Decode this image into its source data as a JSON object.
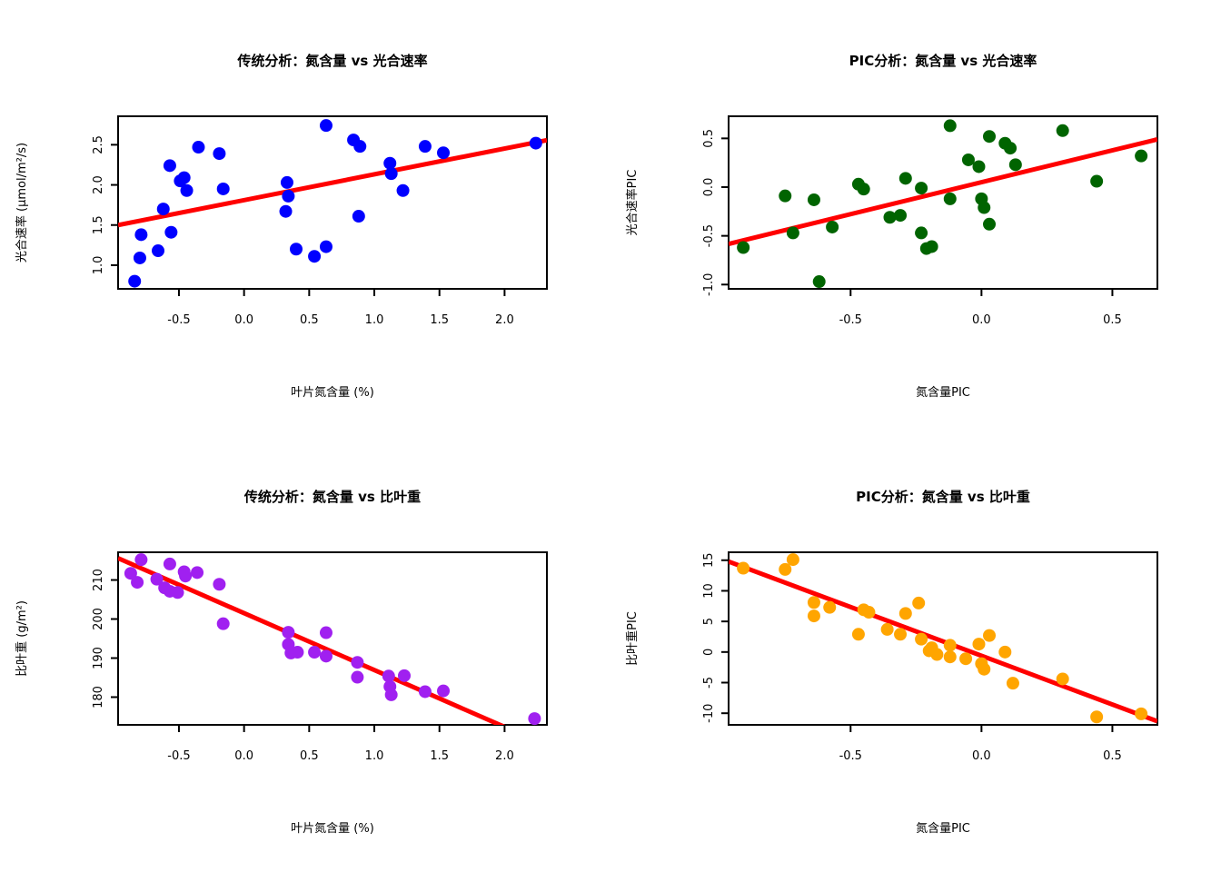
{
  "figure": {
    "background": "#ffffff",
    "text_color": "#000000",
    "regression_line_color": "#ff0000"
  },
  "chart_data": [
    {
      "id": "traditional-photosynthesis",
      "type": "scatter",
      "title": "传统分析：氮含量 vs 光合速率",
      "xlabel": "叶片氮含量 (%)",
      "ylabel": "光合速率 (μmol/m²/s)",
      "point_color": "#0000ff",
      "xlim": [
        -0.967,
        2.325
      ],
      "ylim": [
        0.705,
        2.855
      ],
      "xticks": [
        {
          "v": -0.5,
          "label": "-0.5"
        },
        {
          "v": 0.0,
          "label": "0.0"
        },
        {
          "v": 0.5,
          "label": "0.5"
        },
        {
          "v": 1.0,
          "label": "1.0"
        },
        {
          "v": 1.5,
          "label": "1.5"
        },
        {
          "v": 2.0,
          "label": "2.0"
        }
      ],
      "yticks": [
        {
          "v": 1.0,
          "label": "1.0"
        },
        {
          "v": 1.5,
          "label": "1.5"
        },
        {
          "v": 2.0,
          "label": "2.0"
        },
        {
          "v": 2.5,
          "label": "2.5"
        }
      ],
      "regression": {
        "intercept": 1.81,
        "slope": 0.3214,
        "color": "#ff0000"
      },
      "points": [
        [
          -0.84,
          0.8
        ],
        [
          -0.8,
          1.09
        ],
        [
          -0.79,
          1.38
        ],
        [
          -0.66,
          1.18
        ],
        [
          -0.62,
          1.7
        ],
        [
          -0.57,
          2.24
        ],
        [
          -0.56,
          1.41
        ],
        [
          -0.49,
          2.05
        ],
        [
          -0.46,
          2.09
        ],
        [
          -0.44,
          1.93
        ],
        [
          -0.35,
          2.47
        ],
        [
          -0.19,
          2.39
        ],
        [
          -0.16,
          1.95
        ],
        [
          0.32,
          1.67
        ],
        [
          0.33,
          2.03
        ],
        [
          0.34,
          1.86
        ],
        [
          0.4,
          1.2
        ],
        [
          0.54,
          1.11
        ],
        [
          0.63,
          1.23
        ],
        [
          0.63,
          2.74
        ],
        [
          0.84,
          2.56
        ],
        [
          0.89,
          2.48
        ],
        [
          0.88,
          1.61
        ],
        [
          1.12,
          2.27
        ],
        [
          1.13,
          2.14
        ],
        [
          1.22,
          1.93
        ],
        [
          1.39,
          2.48
        ],
        [
          1.53,
          2.4
        ],
        [
          2.24,
          2.52
        ]
      ]
    },
    {
      "id": "pic-photosynthesis",
      "type": "scatter",
      "title": "PIC分析：氮含量 vs 光合速率",
      "xlabel": "氮含量PIC",
      "ylabel": "光合速率PIC",
      "point_color": "#006400",
      "xlim": [
        -0.966,
        0.672
      ],
      "ylim": [
        -1.044,
        0.727
      ],
      "xticks": [
        {
          "v": -0.5,
          "label": "-0.5"
        },
        {
          "v": 0.0,
          "label": "0.0"
        },
        {
          "v": 0.5,
          "label": "0.5"
        }
      ],
      "yticks": [
        {
          "v": -1.0,
          "label": "-1.0"
        },
        {
          "v": -0.5,
          "label": "-0.5"
        },
        {
          "v": 0.0,
          "label": "0.0"
        },
        {
          "v": 0.5,
          "label": "0.5"
        }
      ],
      "regression": {
        "intercept": 0.05,
        "slope": 0.655,
        "color": "#ff0000"
      },
      "points": [
        [
          -0.91,
          -0.62
        ],
        [
          -0.75,
          -0.09
        ],
        [
          -0.72,
          -0.47
        ],
        [
          -0.64,
          -0.13
        ],
        [
          -0.62,
          -0.97
        ],
        [
          -0.57,
          -0.41
        ],
        [
          -0.47,
          0.03
        ],
        [
          -0.45,
          -0.02
        ],
        [
          -0.35,
          -0.31
        ],
        [
          -0.31,
          -0.29
        ],
        [
          -0.29,
          0.09
        ],
        [
          -0.23,
          -0.01
        ],
        [
          -0.23,
          -0.47
        ],
        [
          -0.21,
          -0.63
        ],
        [
          -0.19,
          -0.61
        ],
        [
          -0.12,
          0.63
        ],
        [
          -0.12,
          -0.12
        ],
        [
          -0.05,
          0.28
        ],
        [
          -0.01,
          0.21
        ],
        [
          0.03,
          0.52
        ],
        [
          0.09,
          0.45
        ],
        [
          0.11,
          0.4
        ],
        [
          0.13,
          0.23
        ],
        [
          0.0,
          -0.12
        ],
        [
          0.01,
          -0.21
        ],
        [
          0.03,
          -0.38
        ],
        [
          0.31,
          0.58
        ],
        [
          0.44,
          0.06
        ],
        [
          0.61,
          0.32
        ]
      ]
    },
    {
      "id": "traditional-sla",
      "type": "scatter",
      "title": "传统分析：氮含量 vs 比叶重",
      "xlabel": "叶片氮含量 (%)",
      "ylabel": "比叶重 (g/m²)",
      "point_color": "#a020f0",
      "xlim": [
        -0.967,
        2.325
      ],
      "ylim": [
        172.9,
        217.1
      ],
      "xticks": [
        {
          "v": -0.5,
          "label": "-0.5"
        },
        {
          "v": 0.0,
          "label": "0.0"
        },
        {
          "v": 0.5,
          "label": "0.5"
        },
        {
          "v": 1.0,
          "label": "1.0"
        },
        {
          "v": 1.5,
          "label": "1.5"
        },
        {
          "v": 2.0,
          "label": "2.0"
        }
      ],
      "yticks": [
        {
          "v": 180,
          "label": "180"
        },
        {
          "v": 190,
          "label": "190"
        },
        {
          "v": 200,
          "label": "200"
        },
        {
          "v": 210,
          "label": "210"
        }
      ],
      "regression": {
        "intercept": 201.5,
        "slope": -14.56,
        "color": "#ff0000"
      },
      "points": [
        [
          -0.87,
          211.7
        ],
        [
          -0.82,
          209.4
        ],
        [
          -0.79,
          215.2
        ],
        [
          -0.67,
          210.2
        ],
        [
          -0.61,
          208.0
        ],
        [
          -0.57,
          214.1
        ],
        [
          -0.57,
          207.1
        ],
        [
          -0.51,
          206.8
        ],
        [
          -0.46,
          212.1
        ],
        [
          -0.45,
          211.0
        ],
        [
          -0.36,
          211.9
        ],
        [
          -0.19,
          208.9
        ],
        [
          -0.16,
          198.8
        ],
        [
          0.34,
          196.6
        ],
        [
          0.34,
          193.5
        ],
        [
          0.36,
          191.3
        ],
        [
          0.41,
          191.5
        ],
        [
          0.54,
          191.5
        ],
        [
          0.63,
          196.5
        ],
        [
          0.63,
          190.5
        ],
        [
          0.87,
          188.9
        ],
        [
          0.87,
          185.1
        ],
        [
          1.11,
          185.4
        ],
        [
          1.12,
          182.7
        ],
        [
          1.13,
          180.6
        ],
        [
          1.23,
          185.5
        ],
        [
          1.39,
          181.4
        ],
        [
          1.53,
          181.6
        ],
        [
          2.23,
          174.5
        ]
      ]
    },
    {
      "id": "pic-sla",
      "type": "scatter",
      "title": "PIC分析：氮含量 vs 比叶重",
      "xlabel": "氮含量PIC",
      "ylabel": "比叶重PIC",
      "point_color": "#ffa500",
      "xlim": [
        -0.966,
        0.672
      ],
      "ylim": [
        -11.9,
        16.3
      ],
      "xticks": [
        {
          "v": -0.5,
          "label": "-0.5"
        },
        {
          "v": 0.0,
          "label": "0.0"
        },
        {
          "v": 0.5,
          "label": "0.5"
        }
      ],
      "yticks": [
        {
          "v": -10,
          "label": "-10"
        },
        {
          "v": -5,
          "label": "-5"
        },
        {
          "v": 0,
          "label": "0"
        },
        {
          "v": 5,
          "label": "5"
        },
        {
          "v": 10,
          "label": "10"
        },
        {
          "v": 15,
          "label": "15"
        }
      ],
      "regression": {
        "intercept": -0.61,
        "slope": -15.93,
        "color": "#ff0000"
      },
      "points": [
        [
          -0.91,
          13.7
        ],
        [
          -0.75,
          13.5
        ],
        [
          -0.72,
          15.1
        ],
        [
          -0.64,
          8.1
        ],
        [
          -0.64,
          5.9
        ],
        [
          -0.58,
          7.3
        ],
        [
          -0.47,
          2.9
        ],
        [
          -0.45,
          6.9
        ],
        [
          -0.43,
          6.5
        ],
        [
          -0.36,
          3.7
        ],
        [
          -0.31,
          2.9
        ],
        [
          -0.29,
          6.3
        ],
        [
          -0.24,
          8.0
        ],
        [
          -0.23,
          2.1
        ],
        [
          -0.2,
          0.2
        ],
        [
          -0.19,
          0.7
        ],
        [
          -0.17,
          -0.4
        ],
        [
          -0.12,
          1.1
        ],
        [
          -0.12,
          -0.8
        ],
        [
          -0.06,
          -1.1
        ],
        [
          -0.01,
          1.3
        ],
        [
          0.0,
          -1.9
        ],
        [
          0.01,
          -2.8
        ],
        [
          0.03,
          2.7
        ],
        [
          0.09,
          0.0
        ],
        [
          0.12,
          -5.1
        ],
        [
          0.31,
          -4.4
        ],
        [
          0.44,
          -10.6
        ],
        [
          0.61,
          -10.1
        ]
      ]
    }
  ]
}
